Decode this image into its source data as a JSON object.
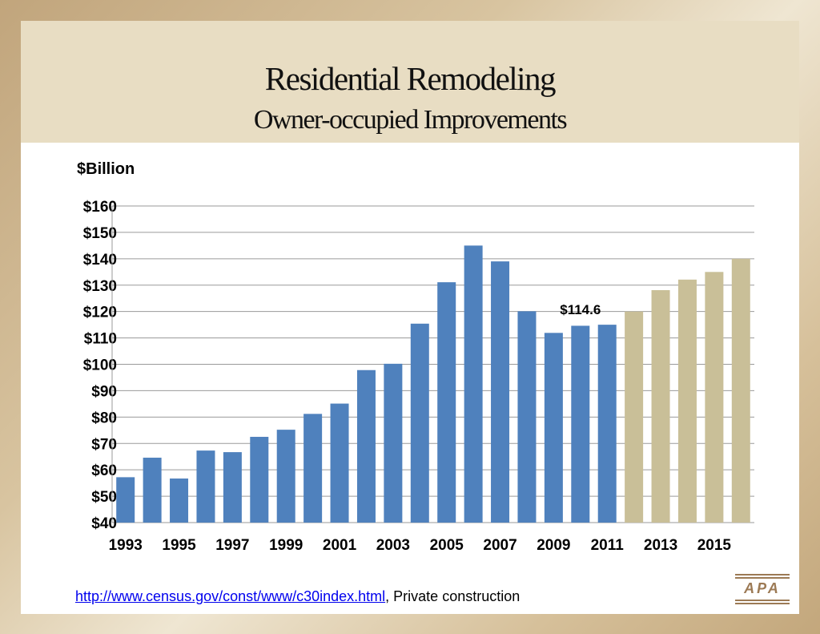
{
  "slide": {
    "title": "Residential Remodeling",
    "subtitle": "Owner-occupied Improvements",
    "unit_label": "$Billion",
    "source_link": "http://www.census.gov/const/www/c30index.html",
    "source_text": ", Private construction",
    "logo_text": "APA"
  },
  "colors": {
    "actual": "#4f81bd",
    "forecast": "#c9bf98",
    "grid": "#9a9a9a",
    "title_band": "#e8ddc3"
  },
  "chart_data": {
    "type": "bar",
    "title": "Residential Remodeling",
    "subtitle": "Owner-occupied Improvements",
    "ylabel": "$Billion",
    "ylim": [
      40,
      160
    ],
    "y_ticks": [
      40,
      50,
      60,
      70,
      80,
      90,
      100,
      110,
      120,
      130,
      140,
      150,
      160
    ],
    "y_tick_labels": [
      "$40",
      "$50",
      "$60",
      "$70",
      "$80",
      "$90",
      "$100",
      "$110",
      "$120",
      "$130",
      "$140",
      "$150",
      "$160"
    ],
    "categories": [
      "1993",
      "1994",
      "1995",
      "1996",
      "1997",
      "1998",
      "1999",
      "2000",
      "2001",
      "2002",
      "2003",
      "2004",
      "2005",
      "2006",
      "2007",
      "2008",
      "2009",
      "2010",
      "2011",
      "2012",
      "2013",
      "2014",
      "2015",
      "2016"
    ],
    "x_tick_labels": [
      "1993",
      "",
      "1995",
      "",
      "1997",
      "",
      "1999",
      "",
      "2001",
      "",
      "2003",
      "",
      "2005",
      "",
      "2007",
      "",
      "2009",
      "",
      "2011",
      "",
      "2013",
      "",
      "2015",
      ""
    ],
    "series": [
      {
        "values": [
          57.2,
          64.6,
          56.7,
          67.3,
          66.7,
          72.5,
          75.2,
          81.2,
          85.1,
          97.8,
          100.2,
          115.4,
          131.1,
          145.0,
          139.0,
          120.1,
          111.9,
          114.6,
          115.0,
          null,
          null,
          null,
          null,
          null
        ]
      },
      {
        "values": [
          null,
          null,
          null,
          null,
          null,
          null,
          null,
          null,
          null,
          null,
          null,
          null,
          null,
          null,
          null,
          null,
          null,
          null,
          null,
          120.0,
          128.1,
          132.1,
          135.0,
          140.0
        ]
      }
    ],
    "annotations": [
      {
        "category": "2010",
        "text": "$114.6"
      }
    ],
    "grid": true,
    "legend": "none"
  }
}
